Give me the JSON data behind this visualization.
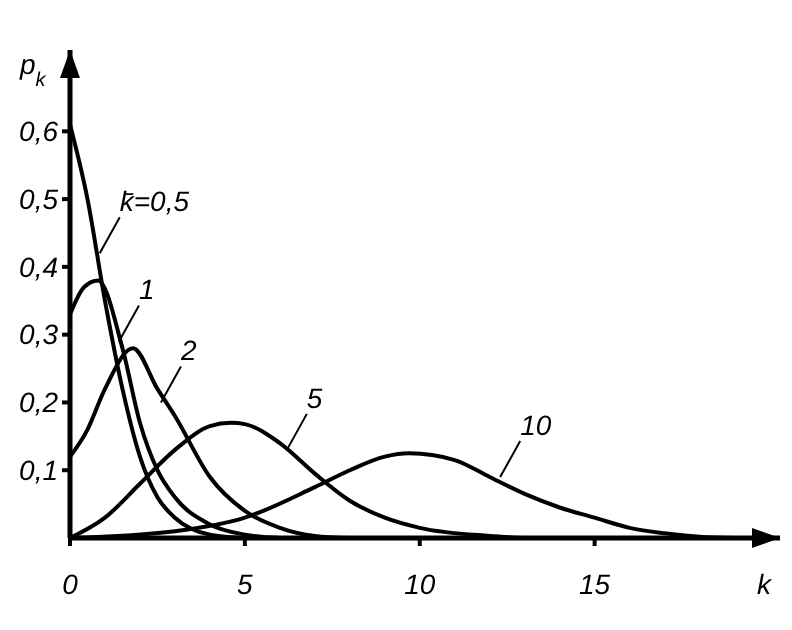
{
  "chart_data": {
    "type": "line",
    "xlabel": "k",
    "ylabel": "p$_{k}$",
    "xlim": [
      0,
      20.3
    ],
    "ylim": [
      0,
      0.72
    ],
    "xticks": [
      0,
      5,
      10,
      15
    ],
    "yticks": [
      {
        "value": 0.1,
        "label": "0,1"
      },
      {
        "value": 0.2,
        "label": "0,2"
      },
      {
        "value": 0.3,
        "label": "0,3"
      },
      {
        "value": 0.4,
        "label": "0,4"
      },
      {
        "value": 0.5,
        "label": "0,5"
      },
      {
        "value": 0.6,
        "label": "0,6"
      }
    ],
    "grid": false,
    "marker": "none",
    "line_style": "solid",
    "series": [
      {
        "color": "#000000",
        "x": [
          0,
          0.5,
          1,
          1.5,
          2,
          2.5,
          3,
          4,
          5
        ],
        "values": [
          0.61,
          0.5,
          0.35,
          0.22,
          0.12,
          0.06,
          0.03,
          0.005,
          0
        ]
      },
      {
        "color": "#000000",
        "x": [
          0,
          0.4,
          0.8,
          1.5,
          2,
          2.5,
          3,
          4,
          5,
          6
        ],
        "values": [
          0.33,
          0.37,
          0.38,
          0.28,
          0.17,
          0.1,
          0.06,
          0.02,
          0.005,
          0
        ]
      },
      {
        "color": "#000000",
        "x": [
          0,
          0.5,
          1,
          1.8,
          2.5,
          3,
          4,
          5,
          6,
          7,
          8
        ],
        "values": [
          0.12,
          0.16,
          0.22,
          0.28,
          0.22,
          0.18,
          0.09,
          0.04,
          0.015,
          0.003,
          0
        ]
      },
      {
        "color": "#000000",
        "x": [
          0,
          1,
          2,
          3,
          4,
          4.6,
          5,
          6,
          7,
          8,
          9,
          10,
          12,
          13
        ],
        "values": [
          0,
          0.03,
          0.08,
          0.13,
          0.165,
          0.17,
          0.168,
          0.14,
          0.095,
          0.055,
          0.03,
          0.015,
          0.003,
          0
        ]
      },
      {
        "color": "#000000",
        "x": [
          0,
          3,
          5,
          7,
          8,
          9,
          9.7,
          11,
          12,
          13,
          14,
          15,
          16,
          17,
          18,
          19
        ],
        "values": [
          0,
          0.01,
          0.03,
          0.075,
          0.1,
          0.12,
          0.125,
          0.115,
          0.09,
          0.065,
          0.045,
          0.03,
          0.015,
          0.007,
          0.002,
          0
        ]
      }
    ],
    "annotations": [
      {
        "text": "k̄=0,5",
        "x": 0.85,
        "y": 0.42
      },
      {
        "text": "1",
        "x": 1.4,
        "y": 0.29
      },
      {
        "text": "2",
        "x": 2.6,
        "y": 0.2
      },
      {
        "text": "5",
        "x": 6.2,
        "y": 0.13
      },
      {
        "text": "10",
        "x": 12.3,
        "y": 0.09
      }
    ]
  }
}
